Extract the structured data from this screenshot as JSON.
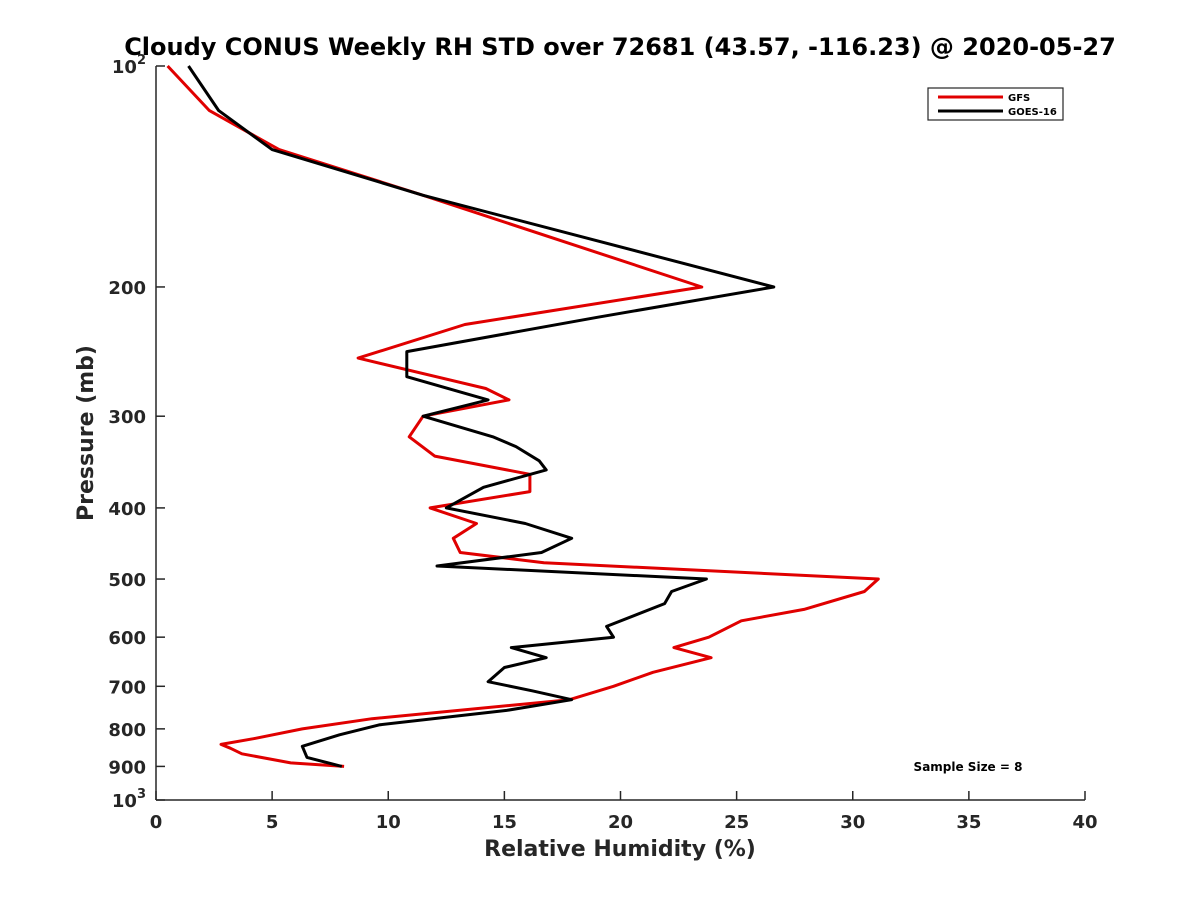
{
  "chart_data": {
    "type": "line",
    "title": "Cloudy CONUS Weekly RH STD over 72681 (43.57, -116.23) @ 2020-05-27",
    "xlabel": "Relative Humidity (%)",
    "ylabel": "Pressure (mb)",
    "xlim": [
      0,
      40
    ],
    "ylim": [
      100,
      1000
    ],
    "y_scale": "log",
    "y_reversed": true,
    "grid": false,
    "legend_position": "top-right",
    "x_ticks": [
      "0",
      "5",
      "10",
      "15",
      "20",
      "25",
      "30",
      "35",
      "40"
    ],
    "y_ticks": [
      {
        "value": 100,
        "base": "10",
        "exp": "2"
      },
      {
        "value": 200,
        "label": "200"
      },
      {
        "value": 300,
        "label": "300"
      },
      {
        "value": 400,
        "label": "400"
      },
      {
        "value": 500,
        "label": "500"
      },
      {
        "value": 600,
        "label": "600"
      },
      {
        "value": 700,
        "label": "700"
      },
      {
        "value": 800,
        "label": "800"
      },
      {
        "value": 900,
        "label": "900"
      },
      {
        "value": 1000,
        "base": "10",
        "exp": "3"
      }
    ],
    "series": [
      {
        "name": "GFS",
        "color": "#e00000",
        "points": [
          [
            0.5,
            100
          ],
          [
            2.3,
            115
          ],
          [
            5.3,
            130
          ],
          [
            11.5,
            150
          ],
          [
            23.5,
            200
          ],
          [
            13.3,
            225
          ],
          [
            8.7,
            250
          ],
          [
            14.2,
            275
          ],
          [
            15.2,
            285
          ],
          [
            11.5,
            300
          ],
          [
            10.9,
            320
          ],
          [
            12.0,
            340
          ],
          [
            16.1,
            360
          ],
          [
            16.1,
            380
          ],
          [
            11.8,
            400
          ],
          [
            13.8,
            420
          ],
          [
            12.8,
            440
          ],
          [
            13.1,
            460
          ],
          [
            16.7,
            475
          ],
          [
            31.1,
            500
          ],
          [
            30.5,
            520
          ],
          [
            27.9,
            550
          ],
          [
            25.2,
            570
          ],
          [
            23.8,
            600
          ],
          [
            22.3,
            620
          ],
          [
            23.9,
            640
          ],
          [
            21.4,
            670
          ],
          [
            19.7,
            700
          ],
          [
            17.8,
            730
          ],
          [
            9.3,
            775
          ],
          [
            6.3,
            800
          ],
          [
            4.2,
            825
          ],
          [
            2.8,
            840
          ],
          [
            3.2,
            850
          ],
          [
            3.7,
            865
          ],
          [
            5.8,
            890
          ],
          [
            8.1,
            900
          ]
        ]
      },
      {
        "name": "GOES-16",
        "color": "#000000",
        "points": [
          [
            1.4,
            100
          ],
          [
            2.7,
            115
          ],
          [
            5.0,
            130
          ],
          [
            11.5,
            150
          ],
          [
            26.6,
            200
          ],
          [
            19.0,
            220
          ],
          [
            10.8,
            245
          ],
          [
            10.8,
            265
          ],
          [
            14.3,
            285
          ],
          [
            11.5,
            300
          ],
          [
            14.5,
            320
          ],
          [
            15.5,
            330
          ],
          [
            16.5,
            345
          ],
          [
            16.8,
            355
          ],
          [
            14.1,
            375
          ],
          [
            12.5,
            400
          ],
          [
            15.9,
            420
          ],
          [
            17.9,
            440
          ],
          [
            16.6,
            460
          ],
          [
            12.1,
            480
          ],
          [
            23.7,
            500
          ],
          [
            22.2,
            520
          ],
          [
            21.9,
            540
          ],
          [
            19.4,
            580
          ],
          [
            19.7,
            600
          ],
          [
            15.3,
            620
          ],
          [
            16.8,
            640
          ],
          [
            15.0,
            660
          ],
          [
            14.3,
            690
          ],
          [
            16.2,
            710
          ],
          [
            17.9,
            730
          ],
          [
            15.1,
            755
          ],
          [
            9.6,
            790
          ],
          [
            7.9,
            815
          ],
          [
            6.3,
            845
          ],
          [
            6.5,
            875
          ],
          [
            8.0,
            900
          ]
        ]
      }
    ],
    "annotation": "Sample Size = 8"
  }
}
